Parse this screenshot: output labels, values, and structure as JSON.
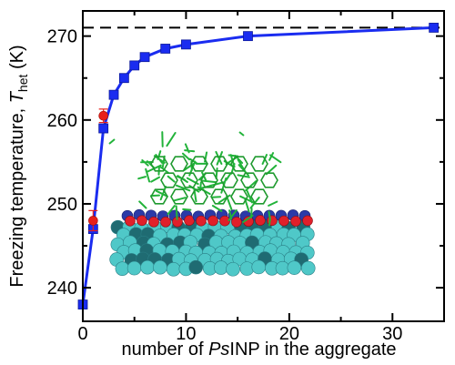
{
  "chart_data": {
    "type": "line",
    "xlabel_parts": [
      "number of ",
      "Ps",
      "INP in the aggregate"
    ],
    "ylabel_main": "Freezing temperature, ",
    "ylabel_sym": "T",
    "ylabel_sub": "het",
    "ylabel_unit": " (K)",
    "xlim": [
      0,
      35
    ],
    "ylim": [
      236,
      273
    ],
    "xticks": [
      0,
      10,
      20,
      30
    ],
    "yticks": [
      240,
      250,
      260,
      270
    ],
    "xticks_minor": [
      5,
      15,
      25
    ],
    "yticks_minor": [
      245,
      255,
      265
    ],
    "reference_line": {
      "y": 271,
      "style": "dashed",
      "color": "#000000"
    },
    "series": [
      {
        "color": "#1a2cf0",
        "marker": "square",
        "x": [
          0,
          1,
          2,
          3,
          4,
          5,
          6,
          8,
          10,
          16,
          34
        ],
        "y": [
          238,
          247,
          259,
          263,
          265,
          266.5,
          267.5,
          268.5,
          269,
          270,
          271
        ]
      },
      {
        "color": "#e8201a",
        "marker": "circle",
        "x": [
          1,
          2
        ],
        "y": [
          248,
          260.5
        ],
        "yerr": [
          1.2,
          0.8
        ]
      }
    ]
  },
  "inset": {
    "description_icon": "ice-nucleating-protein-aggregate-with-ice-lattice-icon",
    "colors": {
      "ice": "#22b33a",
      "protein": "#4fc8c8",
      "protein_dark": "#1f6b72",
      "oxygen": "#e0202a",
      "nitrogen": "#2b3aa8"
    }
  }
}
